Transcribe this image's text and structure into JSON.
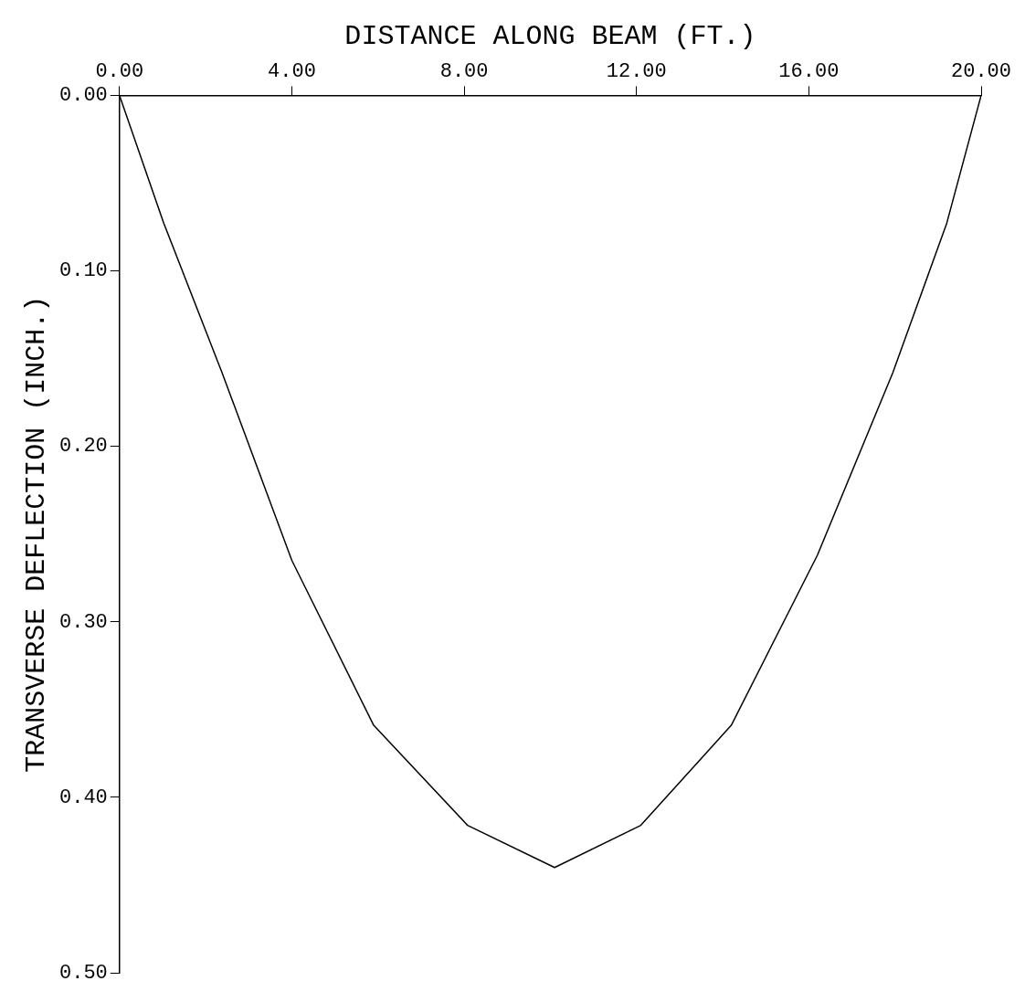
{
  "chart_data": {
    "type": "line",
    "xlabel": "DISTANCE ALONG BEAM (FT.)",
    "ylabel": "TRANSVERSE DEFLECTION (INCH.)",
    "x": [
      0,
      1.03,
      2.38,
      4.0,
      5.9,
      8.08,
      10.1,
      12.1,
      14.2,
      16.2,
      17.95,
      19.2,
      20
    ],
    "series": [
      {
        "color": "#000000",
        "values": [
          0,
          0.073,
          0.158,
          0.265,
          0.359,
          0.416,
          0.44,
          0.416,
          0.359,
          0.262,
          0.158,
          0.073,
          0
        ]
      }
    ],
    "xlim": [
      0,
      20
    ],
    "xticks": [
      {
        "value": 0,
        "label": "0.00"
      },
      {
        "value": 4,
        "label": "4.00"
      },
      {
        "value": 8,
        "label": "8.00"
      },
      {
        "value": 12,
        "label": "12.00"
      },
      {
        "value": 16,
        "label": "16.00"
      },
      {
        "value": 20,
        "label": "20.00"
      }
    ],
    "ylim": [
      0.5,
      0
    ],
    "yticks": [
      {
        "value": 0,
        "label": "0.00"
      },
      {
        "value": 0.1,
        "label": "0.10"
      },
      {
        "value": 0.2,
        "label": "0.20"
      },
      {
        "value": 0.3,
        "label": "0.30"
      },
      {
        "value": 0.4,
        "label": "0.40"
      },
      {
        "value": 0.5,
        "label": "0.50"
      }
    ],
    "grid": false,
    "legend": false,
    "marker": "none",
    "line_style": "solid"
  }
}
